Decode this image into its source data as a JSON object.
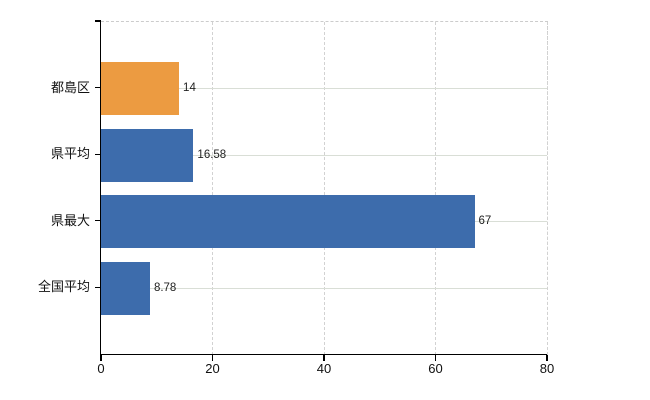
{
  "chart_data": {
    "type": "bar",
    "orientation": "horizontal",
    "title": "",
    "xlabel": "",
    "ylabel": "",
    "categories": [
      "都島区",
      "県平均",
      "県最大",
      "全国平均"
    ],
    "values": [
      14,
      16.58,
      67,
      8.78
    ],
    "value_labels": [
      "14",
      "16.58",
      "67",
      "8.78"
    ],
    "bar_colors": [
      "#ec9b41",
      "#3d6cac",
      "#3d6cac",
      "#3d6cac"
    ],
    "xlim": [
      0,
      80
    ],
    "x_ticks": [
      "0",
      "20",
      "40",
      "60",
      "80"
    ],
    "x_tick_values": [
      0,
      20,
      40,
      60,
      80
    ],
    "grid": true,
    "legend": "none"
  },
  "colors": {
    "highlight_bar": "#ec9b41",
    "default_bar": "#3d6cac",
    "axis": "#000000",
    "gridline_h": "#d9ded6",
    "gridline_v": "#d2d2d2",
    "plot_border_dashed": "#cccccc",
    "background": "#ffffff",
    "label_text": "#111111",
    "value_text": "#222222"
  }
}
